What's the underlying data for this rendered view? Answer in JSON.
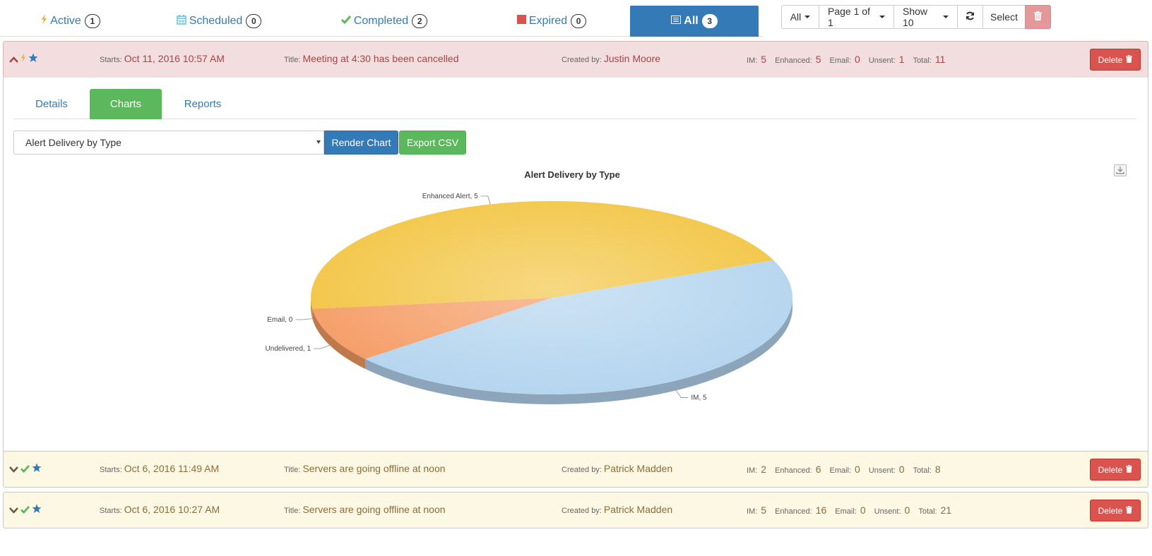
{
  "status_tabs": [
    {
      "label": "Active",
      "count": "1",
      "icon": "bolt-icon"
    },
    {
      "label": "Scheduled",
      "count": "0",
      "icon": "calendar-icon"
    },
    {
      "label": "Completed",
      "count": "2",
      "icon": "check-icon"
    },
    {
      "label": "Expired",
      "count": "0",
      "icon": "square-icon"
    },
    {
      "label": "All",
      "count": "3",
      "icon": "list-icon"
    }
  ],
  "toolbar": {
    "filter": "All",
    "page": "Page 1 of 1",
    "show": "Show 10",
    "select": "Select"
  },
  "labels": {
    "starts": "Starts:",
    "title": "Title:",
    "created_by": "Created by:",
    "im": "IM:",
    "enhanced": "Enhanced:",
    "email": "Email:",
    "unsent": "Unsent:",
    "total": "Total:",
    "delete": "Delete"
  },
  "alerts": [
    {
      "starts": "Oct 11, 2016 10:57 AM",
      "title": "Meeting at 4:30 has been cancelled",
      "created_by": "Justin Moore",
      "im": "5",
      "enhanced": "5",
      "email": "0",
      "unsent": "1",
      "total": "11"
    },
    {
      "starts": "Oct 6, 2016 11:49 AM",
      "title": "Servers are going offline at noon",
      "created_by": "Patrick Madden",
      "im": "2",
      "enhanced": "6",
      "email": "0",
      "unsent": "0",
      "total": "8"
    },
    {
      "starts": "Oct 6, 2016 10:27 AM",
      "title": "Servers are going offline at noon",
      "created_by": "Patrick Madden",
      "im": "5",
      "enhanced": "16",
      "email": "0",
      "unsent": "0",
      "total": "21"
    }
  ],
  "detail_tabs": [
    "Details",
    "Charts",
    "Reports"
  ],
  "chart_controls": {
    "selected_chart": "Alert Delivery by Type",
    "render_label": "Render Chart",
    "export_label": "Export CSV"
  },
  "colors": {
    "primary": "#337ab7",
    "success": "#5cb85c",
    "danger": "#d9534f",
    "row_red_bg": "#f2dede",
    "row_yellow_bg": "#fcf8e3"
  },
  "chart_data": {
    "type": "pie",
    "title": "Alert Delivery by Type",
    "slices": [
      {
        "label": "IM, 5",
        "value": 5,
        "color": "#b3d4ee"
      },
      {
        "label": "Undelivered, 1",
        "value": 1,
        "color": "#f59b63"
      },
      {
        "label": "Email, 0",
        "value": 0,
        "color": "#e4664b"
      },
      {
        "label": "Enhanced Alert, 5",
        "value": 5,
        "color": "#f2c440"
      }
    ]
  }
}
